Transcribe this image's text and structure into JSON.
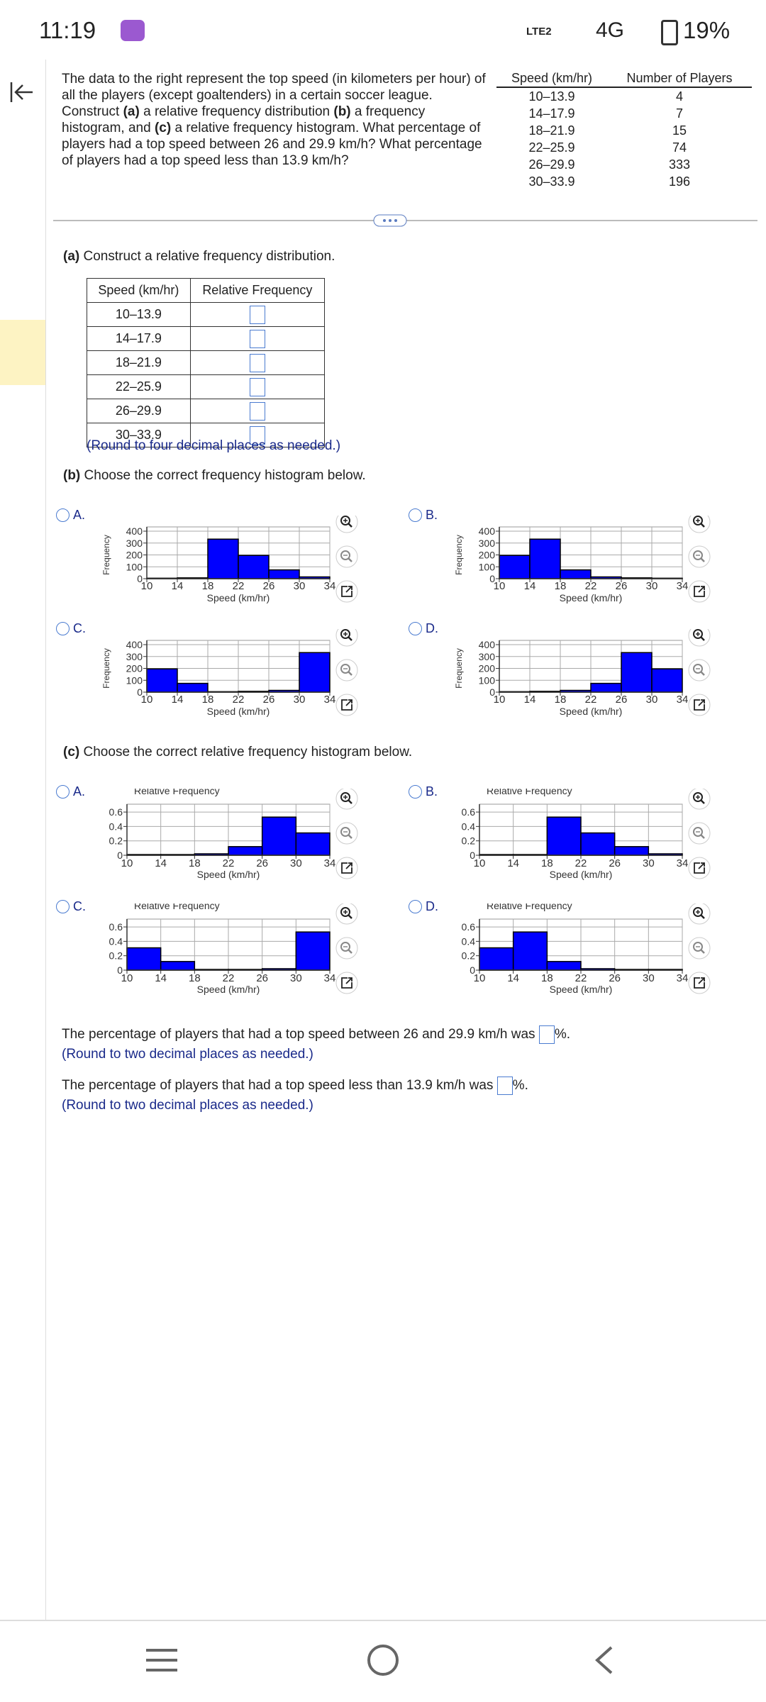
{
  "status_bar": {
    "time": "11:19",
    "network": "LTE2",
    "signal": "4G",
    "battery": "19%"
  },
  "question": {
    "text": [
      "The data to the right represent the top speed (in kilometers per hour) of all the players (except goaltenders) in a certain soccer league. Construct ",
      "(a)",
      " a relative frequency distribution ",
      "(b)",
      " a frequency histogram, and ",
      "(c)",
      " a relative frequency histogram. What percentage of players had a top speed between 26 and 29.9 km/h? What percentage of players had a top speed less than 13.9 km/h?"
    ]
  },
  "data_table": {
    "header": [
      "Speed (km/hr)",
      "Number of Players"
    ],
    "rows": [
      [
        "10–13.9",
        4
      ],
      [
        "14–17.9",
        7
      ],
      [
        "18–21.9",
        15
      ],
      [
        "22–25.9",
        74
      ],
      [
        "26–29.9",
        333
      ],
      [
        "30–33.9",
        196
      ]
    ]
  },
  "part_a": {
    "label": "(a)",
    "prompt": "Construct a relative frequency distribution.",
    "header": [
      "Speed (km/hr)",
      "Relative Frequency"
    ],
    "rows": [
      "10–13.9",
      "14–17.9",
      "18–21.9",
      "22–25.9",
      "26–29.9",
      "30–33.9"
    ],
    "note": "(Round to four decimal places as needed.)"
  },
  "part_b": {
    "label": "(b)",
    "prompt": "Choose the correct frequency histogram below.",
    "options": [
      {
        "letter": "A.",
        "chart": {
          "type": "histogram",
          "y_label": "Frequency",
          "x_label": "Speed (km/hr)",
          "bins": [
            10,
            14,
            18,
            22,
            26,
            30,
            34
          ],
          "values": [
            4,
            7,
            333,
            196,
            74,
            15
          ],
          "xlim": [
            10,
            34
          ],
          "xticks": [
            10,
            14,
            18,
            22,
            26,
            30,
            34
          ],
          "ylim": [
            0,
            400
          ],
          "yticks": [
            0,
            100,
            200,
            300,
            400
          ],
          "grid": true,
          "color": "#0000ff"
        }
      },
      {
        "letter": "B.",
        "chart": {
          "type": "histogram",
          "y_label": "Frequency",
          "x_label": "Speed (km/hr)",
          "bins": [
            10,
            14,
            18,
            22,
            26,
            30,
            34
          ],
          "values": [
            196,
            333,
            74,
            15,
            7,
            4
          ],
          "xlim": [
            10,
            34
          ],
          "xticks": [
            10,
            14,
            18,
            22,
            26,
            30,
            34
          ],
          "ylim": [
            0,
            400
          ],
          "yticks": [
            0,
            100,
            200,
            300,
            400
          ],
          "grid": true,
          "color": "#0000ff"
        }
      },
      {
        "letter": "C.",
        "chart": {
          "type": "histogram",
          "y_label": "Frequency",
          "x_label": "Speed (km/hr)",
          "bins": [
            10,
            14,
            18,
            22,
            26,
            30,
            34
          ],
          "values": [
            196,
            74,
            4,
            7,
            15,
            333
          ],
          "xlim": [
            10,
            34
          ],
          "xticks": [
            10,
            14,
            18,
            22,
            26,
            30,
            34
          ],
          "ylim": [
            0,
            400
          ],
          "yticks": [
            0,
            100,
            200,
            300,
            400
          ],
          "grid": true,
          "color": "#0000ff"
        }
      },
      {
        "letter": "D.",
        "chart": {
          "type": "histogram",
          "y_label": "Frequency",
          "x_label": "Speed (km/hr)",
          "bins": [
            10,
            14,
            18,
            22,
            26,
            30,
            34
          ],
          "values": [
            4,
            7,
            15,
            74,
            333,
            196
          ],
          "xlim": [
            10,
            34
          ],
          "xticks": [
            10,
            14,
            18,
            22,
            26,
            30,
            34
          ],
          "ylim": [
            0,
            400
          ],
          "yticks": [
            0,
            100,
            200,
            300,
            400
          ],
          "grid": true,
          "color": "#0000ff"
        }
      }
    ]
  },
  "part_c": {
    "label": "(c)",
    "prompt": "Choose the correct relative frequency histogram below.",
    "options": [
      {
        "letter": "A.",
        "chart": {
          "type": "histogram",
          "title": "Relative Frequency",
          "x_label": "Speed (km/hr)",
          "bins": [
            10,
            14,
            18,
            22,
            26,
            30,
            34
          ],
          "values": [
            0.01,
            0.01,
            0.02,
            0.12,
            0.53,
            0.31
          ],
          "xlim": [
            10,
            34
          ],
          "xticks": [
            10,
            14,
            18,
            22,
            26,
            30,
            34
          ],
          "ylim": [
            0,
            0.65
          ],
          "yticks": [
            0,
            0.2,
            0.4,
            0.6
          ],
          "grid": true,
          "color": "#0000ff"
        }
      },
      {
        "letter": "B.",
        "chart": {
          "type": "histogram",
          "title": "Relative Frequency",
          "x_label": "Speed (km/hr)",
          "bins": [
            10,
            14,
            18,
            22,
            26,
            30,
            34
          ],
          "values": [
            0.01,
            0.01,
            0.53,
            0.31,
            0.12,
            0.02
          ],
          "xlim": [
            10,
            34
          ],
          "xticks": [
            10,
            14,
            18,
            22,
            26,
            30,
            34
          ],
          "ylim": [
            0,
            0.65
          ],
          "yticks": [
            0,
            0.2,
            0.4,
            0.6
          ],
          "grid": true,
          "color": "#0000ff"
        }
      },
      {
        "letter": "C.",
        "chart": {
          "type": "histogram",
          "title": "Relative Frequency",
          "x_label": "Speed (km/hr)",
          "bins": [
            10,
            14,
            18,
            22,
            26,
            30,
            34
          ],
          "values": [
            0.31,
            0.12,
            0.01,
            0.01,
            0.02,
            0.53
          ],
          "xlim": [
            10,
            34
          ],
          "xticks": [
            10,
            14,
            18,
            22,
            26,
            30,
            34
          ],
          "ylim": [
            0,
            0.65
          ],
          "yticks": [
            0,
            0.2,
            0.4,
            0.6
          ],
          "grid": true,
          "color": "#0000ff"
        }
      },
      {
        "letter": "D.",
        "chart": {
          "type": "histogram",
          "title": "Relative Frequency",
          "x_label": "Speed (km/hr)",
          "bins": [
            10,
            14,
            18,
            22,
            26,
            30,
            34
          ],
          "values": [
            0.31,
            0.53,
            0.12,
            0.02,
            0.01,
            0.01
          ],
          "xlim": [
            10,
            34
          ],
          "xticks": [
            10,
            14,
            18,
            22,
            26,
            30,
            34
          ],
          "ylim": [
            0,
            0.65
          ],
          "yticks": [
            0,
            0.2,
            0.4,
            0.6
          ],
          "grid": true,
          "color": "#0000ff"
        }
      }
    ]
  },
  "answers": [
    {
      "text": "The percentage of players that had a top speed between 26 and 29.9 km/h was",
      "unit": "%.",
      "note": "(Round to two decimal places as needed.)"
    },
    {
      "text": "The percentage of players that had a top speed less than 13.9 km/h was",
      "unit": "%.",
      "note": "(Round to two decimal places as needed.)"
    }
  ]
}
